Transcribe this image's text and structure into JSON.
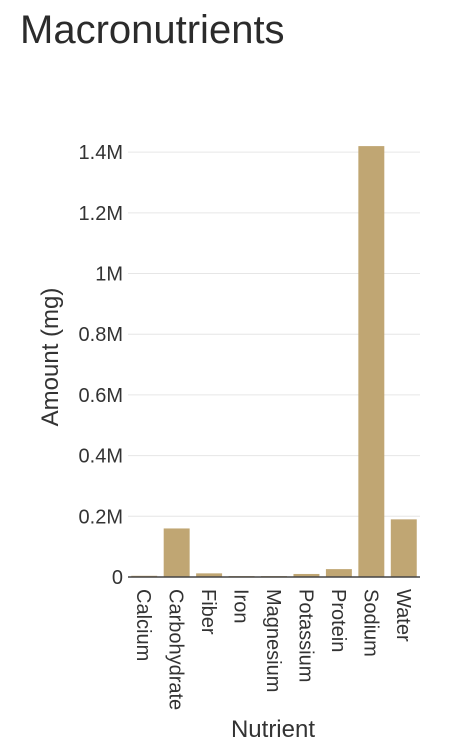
{
  "page": {
    "title": "Macronutrients"
  },
  "chart_data": {
    "type": "bar",
    "categories": [
      "Calcium",
      "Carbohydrate",
      "Fiber",
      "Iron",
      "Magnesium",
      "Potassium",
      "Protein",
      "Sodium",
      "Water"
    ],
    "series": [
      {
        "values": [
          4000,
          160000,
          12000,
          3000,
          3000,
          10000,
          26000,
          1420000,
          190000
        ]
      }
    ],
    "xlabel": "Nutrient",
    "ylabel": "Amount (mg)",
    "ylim": [
      0,
      1450000
    ],
    "yticks": [
      0,
      200000,
      400000,
      600000,
      800000,
      1000000,
      1200000,
      1400000
    ],
    "ytick_labels": [
      "0",
      "0.2M",
      "0.4M",
      "0.6M",
      "0.8M",
      "1M",
      "1.2M",
      "1.4M"
    ],
    "grid": true,
    "legend": "none",
    "bar_color": "#c0a673"
  }
}
